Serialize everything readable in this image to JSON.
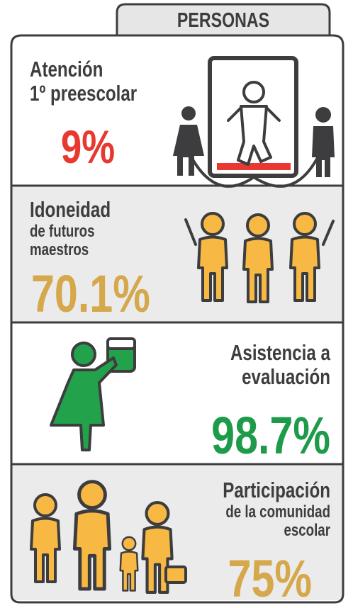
{
  "header": {
    "title": "PERSONAS"
  },
  "sections": [
    {
      "label_lines": [
        "Atención",
        "1º preescolar"
      ],
      "value": "9%"
    },
    {
      "label_lines": [
        "Idoneidad",
        "de futuros",
        "maestros"
      ],
      "value": "70.1%"
    },
    {
      "label_lines": [
        "Asistencia a",
        "evaluación"
      ],
      "value": "98.7%"
    },
    {
      "label_lines": [
        "Participación",
        "de la comunidad",
        "escolar"
      ],
      "value": "75%"
    }
  ]
}
